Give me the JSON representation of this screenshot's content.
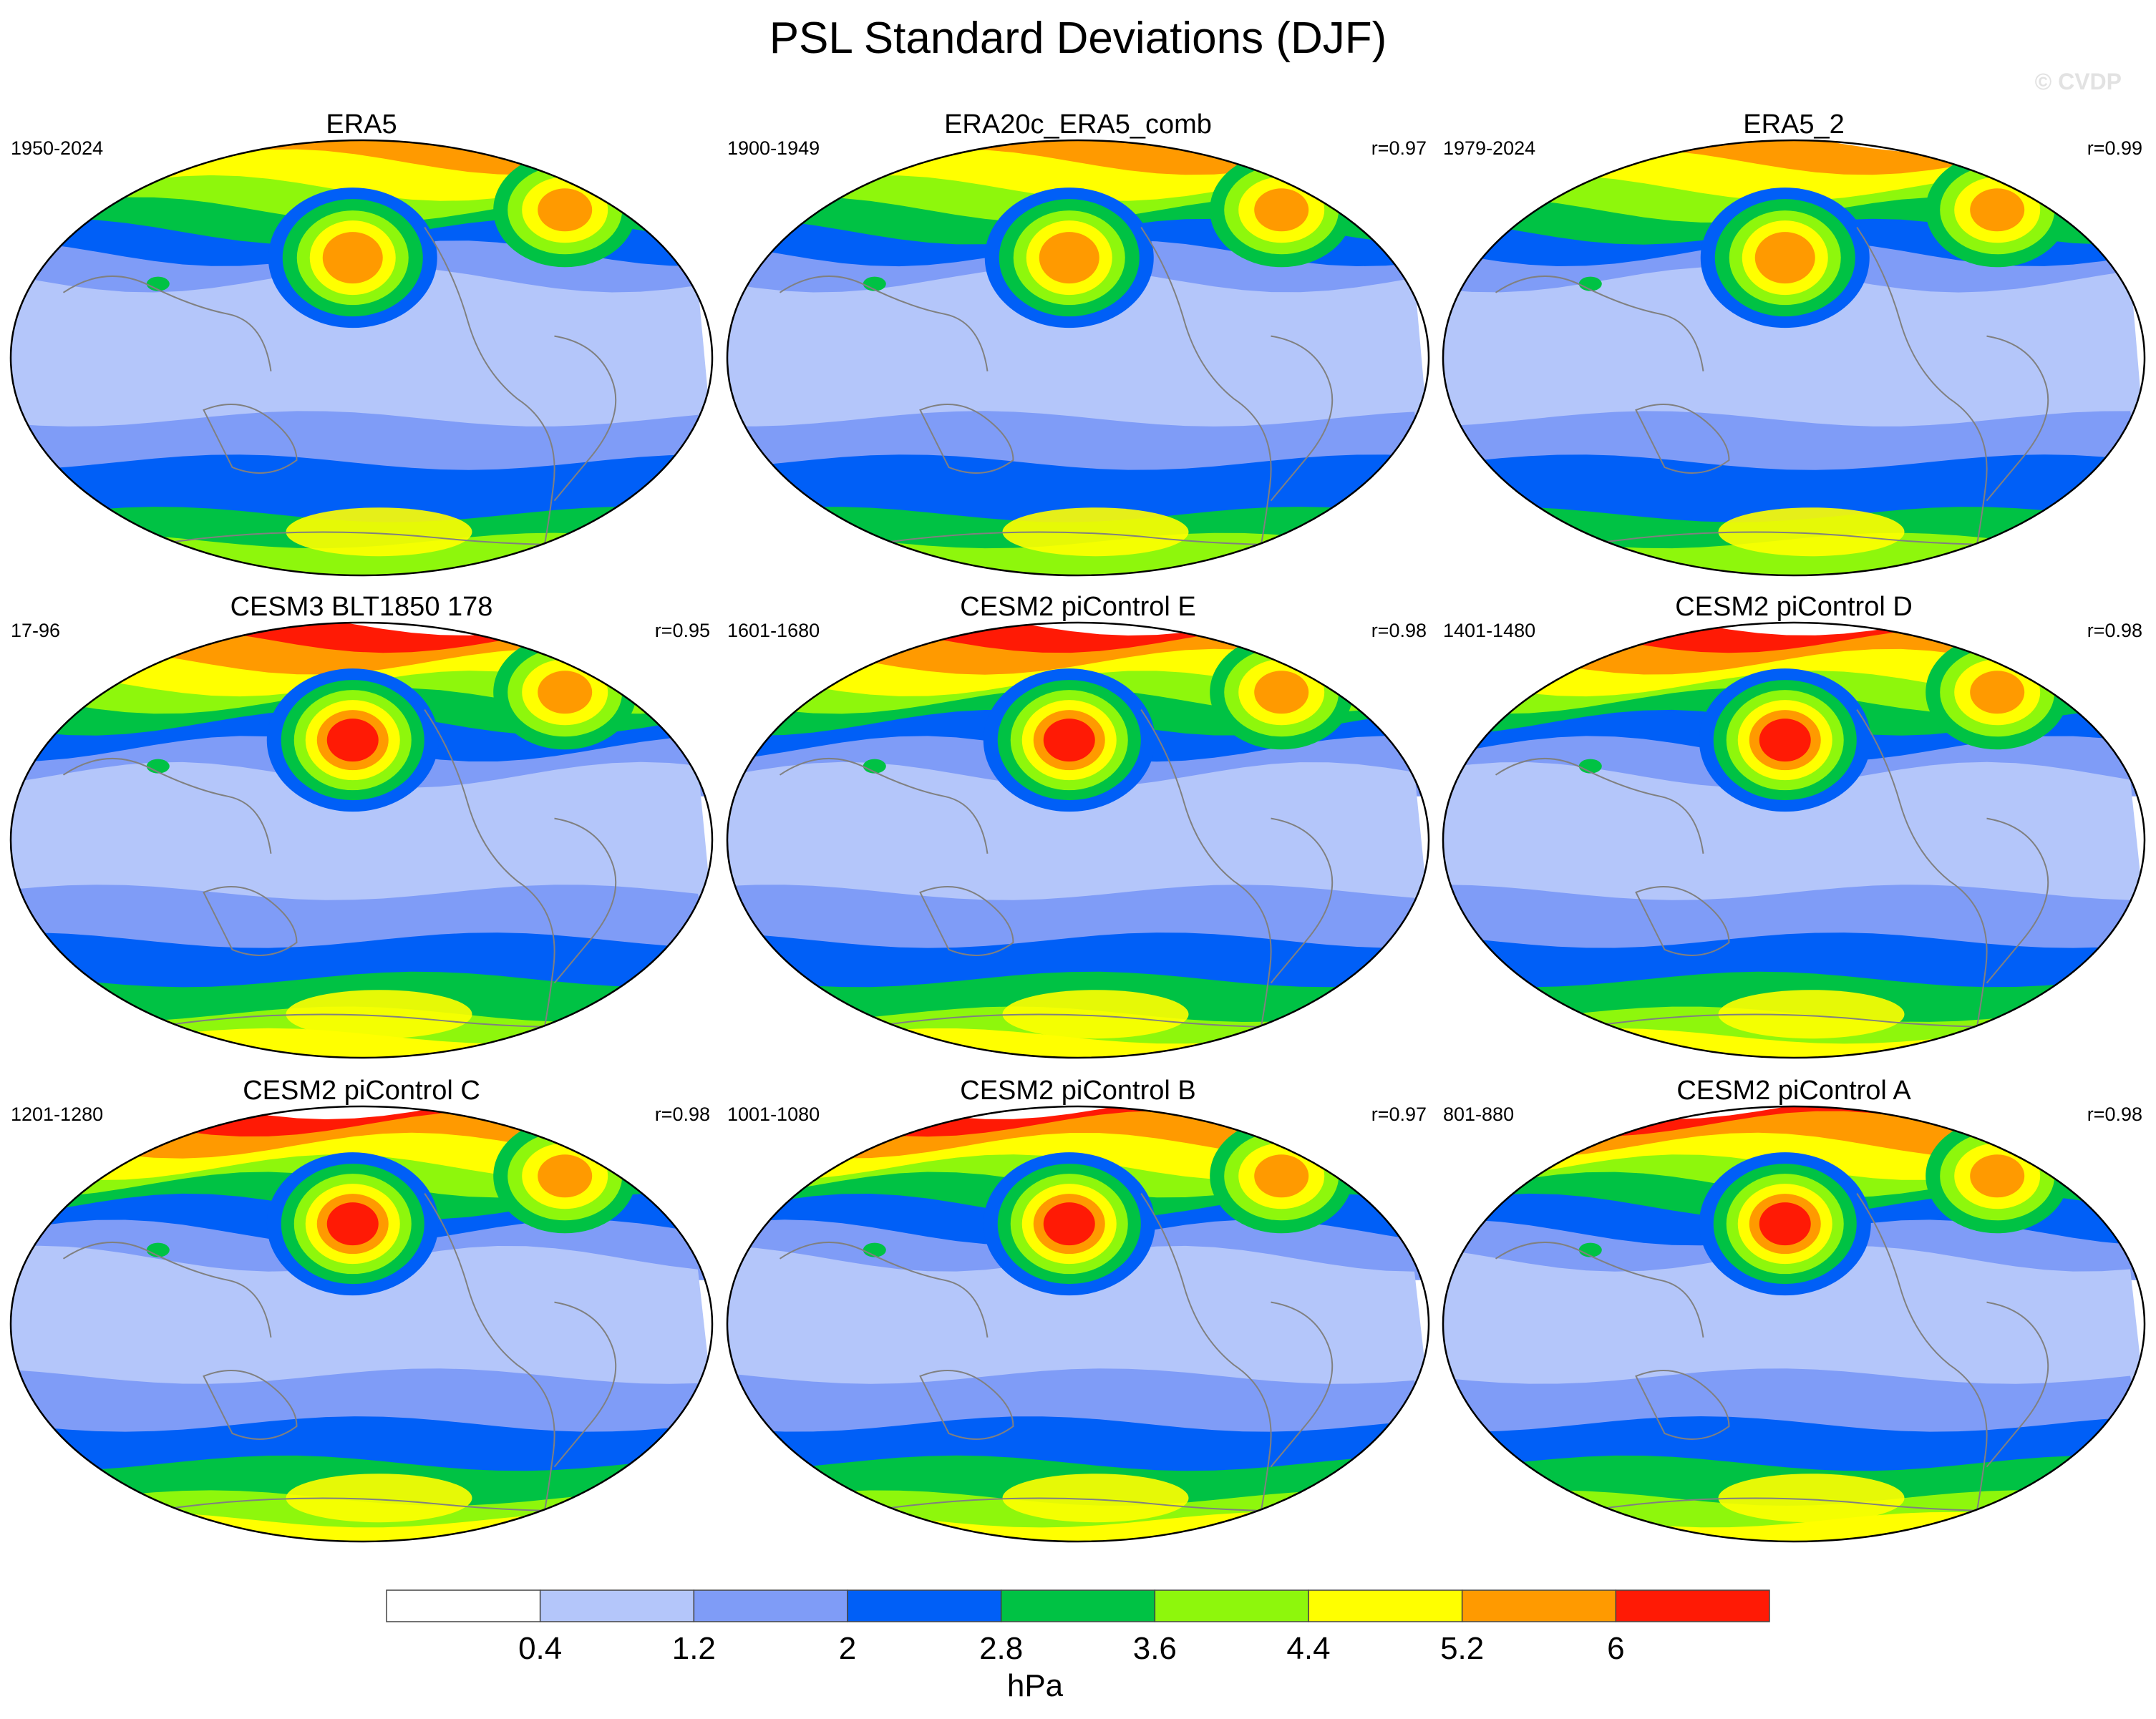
{
  "title": "PSL Standard Deviations (DJF)",
  "watermark": "© CVDP",
  "chart_data": {
    "type": "heatmap",
    "title": "PSL Standard Deviations (DJF)",
    "variable": "PSL",
    "season": "DJF",
    "panels": [
      {
        "name": "ERA5",
        "period": "1950-2024",
        "r": ""
      },
      {
        "name": "ERA20c_ERA5_comb",
        "period": "1900-1949",
        "r": "r=0.97"
      },
      {
        "name": "ERA5_2",
        "period": "1979-2024",
        "r": "r=0.99"
      },
      {
        "name": "CESM3 BLT1850 178",
        "period": "17-96",
        "r": "r=0.95"
      },
      {
        "name": "CESM2 piControl E",
        "period": "1601-1680",
        "r": "r=0.98"
      },
      {
        "name": "CESM2 piControl D",
        "period": "1401-1480",
        "r": "r=0.98"
      },
      {
        "name": "CESM2 piControl C",
        "period": "1201-1280",
        "r": "r=0.98"
      },
      {
        "name": "CESM2 piControl B",
        "period": "1001-1080",
        "r": "r=0.97"
      },
      {
        "name": "CESM2 piControl A",
        "period": "801-880",
        "r": "r=0.98"
      }
    ],
    "colorbar": {
      "unit": "hPa",
      "levels": [
        "0.4",
        "1.2",
        "2",
        "2.8",
        "3.6",
        "4.4",
        "5.2",
        "6"
      ],
      "colors": [
        "#ffffff",
        "#b4c6fa",
        "#7f9cf7",
        "#005ff7",
        "#00c244",
        "#8ef70c",
        "#ffff00",
        "#ff9a00",
        "#ff1a05"
      ]
    },
    "palette": {
      "white": "#ffffff",
      "pale_blue": "#b4c6fa",
      "periwinkle": "#7f9cf7",
      "blue": "#005ff7",
      "green": "#00c244",
      "lime": "#8ef70c",
      "yellow": "#ffff00",
      "orange": "#ff9a00",
      "red": "#ff1a05"
    }
  }
}
